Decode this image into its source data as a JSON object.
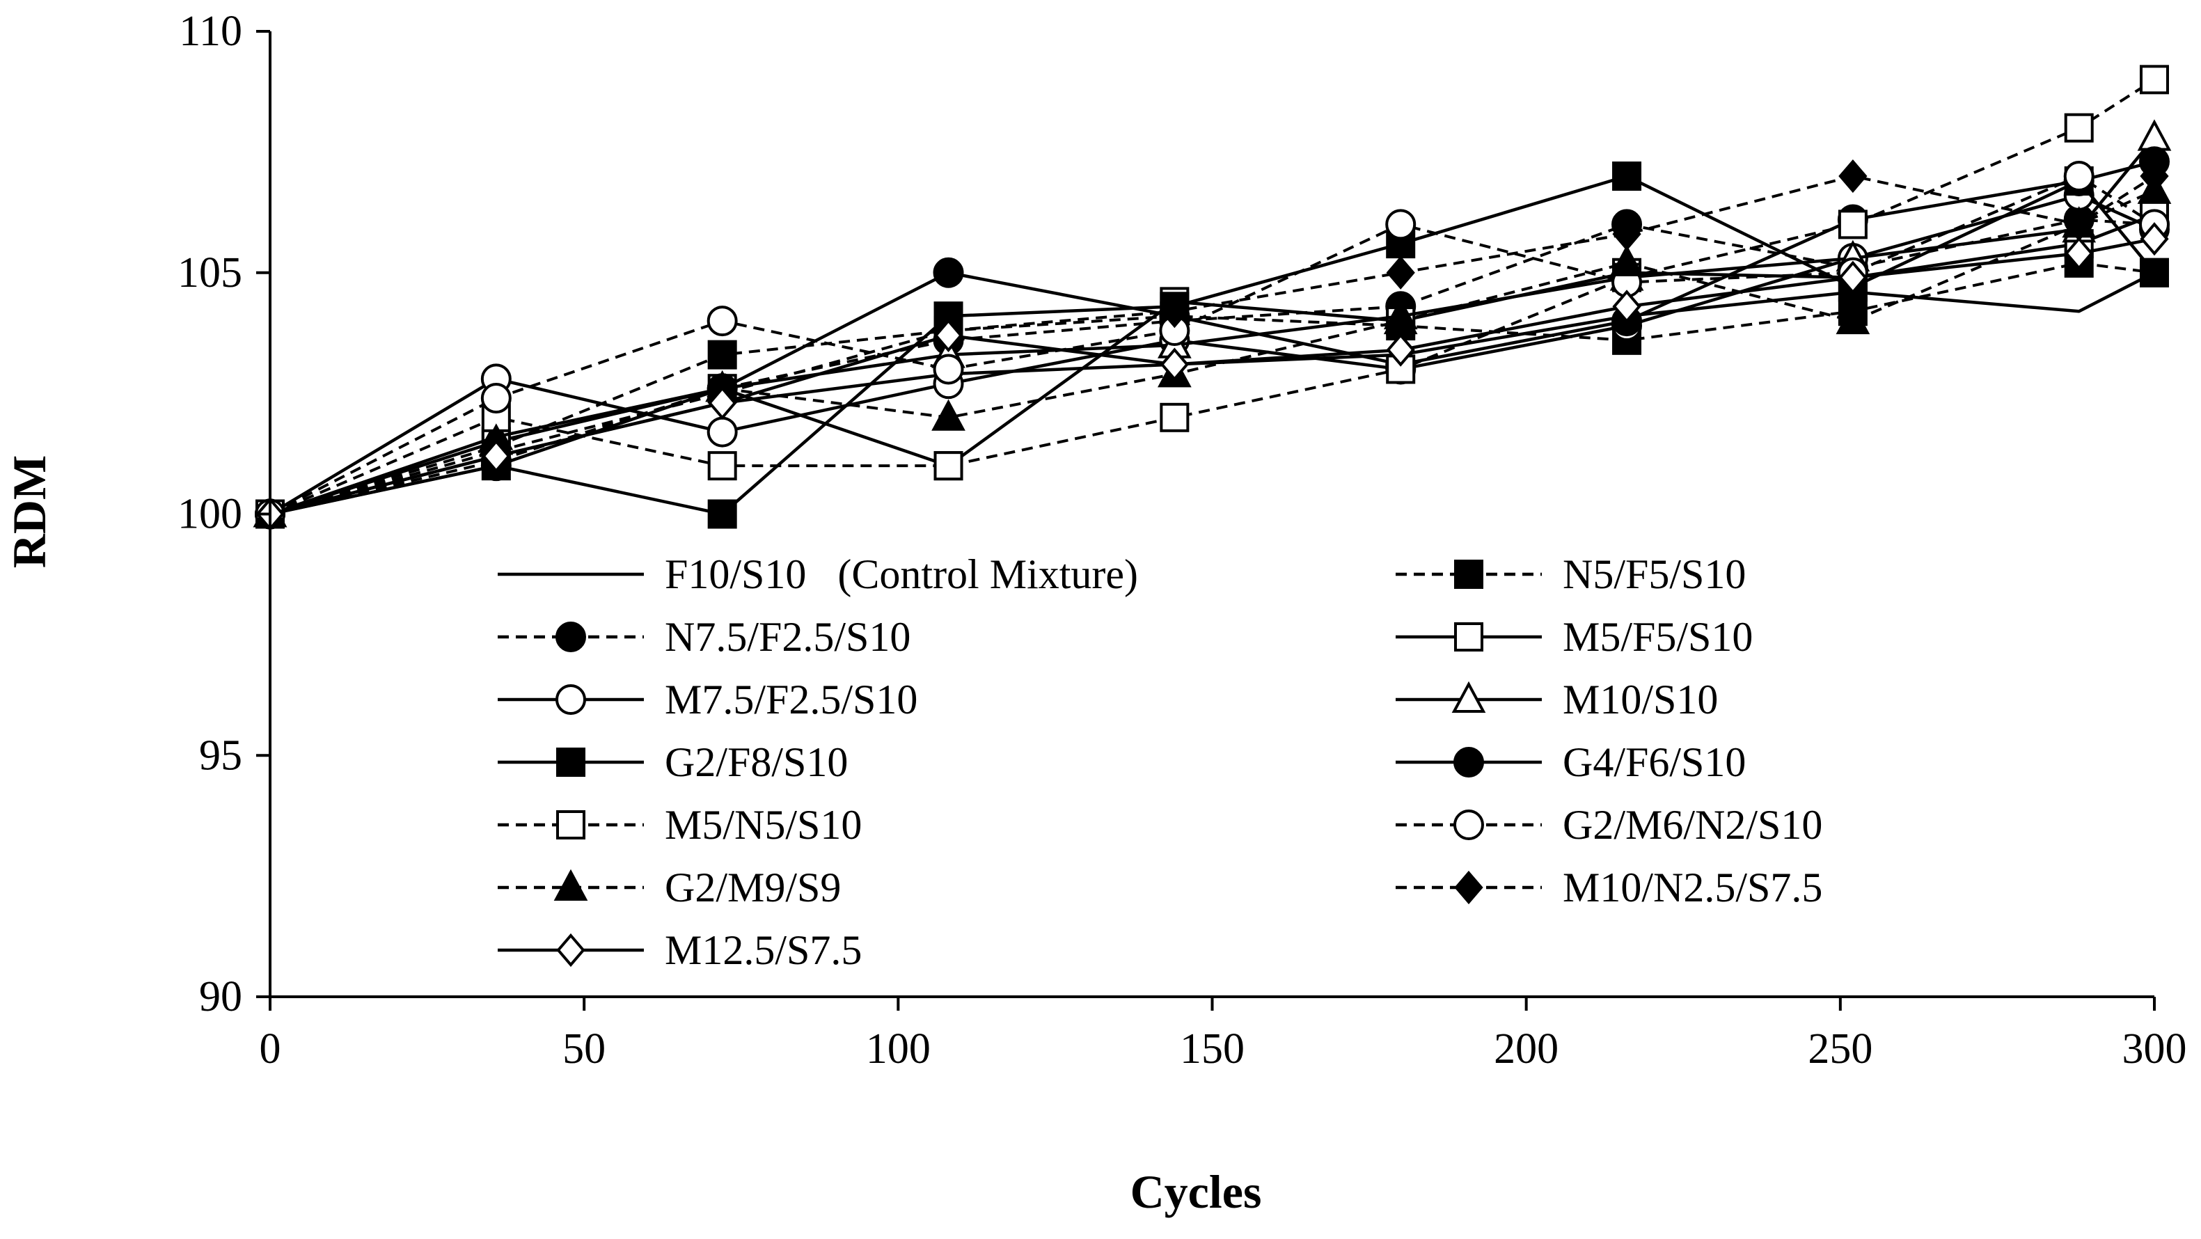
{
  "chart_data": {
    "type": "line",
    "title": "",
    "xlabel": "Cycles",
    "ylabel": "RDM",
    "xlim": [
      0,
      300
    ],
    "ylim": [
      90,
      110
    ],
    "xticks": [
      0,
      50,
      100,
      150,
      200,
      250,
      300
    ],
    "yticks": [
      90,
      95,
      100,
      105,
      110
    ],
    "grid": false,
    "legend_position": "center",
    "x": [
      0,
      36,
      72,
      108,
      144,
      180,
      216,
      252,
      288,
      300
    ],
    "series": [
      {
        "name": "F10/S10   (Control Mixture)",
        "dash": "solid",
        "marker": "none",
        "values": [
          100,
          101.2,
          102.3,
          102.9,
          103.1,
          103.3,
          104.1,
          104.6,
          104.2,
          105.0
        ]
      },
      {
        "name": "N5/F5/S10",
        "dash": "dashed",
        "marker": "square-filled",
        "values": [
          100,
          101.4,
          103.3,
          103.8,
          104.1,
          103.9,
          103.6,
          104.2,
          105.2,
          105.0
        ]
      },
      {
        "name": "N7.5/F2.5/S10",
        "dash": "dashed",
        "marker": "circle-filled",
        "values": [
          100,
          101.1,
          102.6,
          103.6,
          104.0,
          104.3,
          106.0,
          105.1,
          106.1,
          106.0
        ]
      },
      {
        "name": "M5/F5/S10",
        "dash": "solid",
        "marker": "square-open",
        "values": [
          100,
          101.5,
          102.6,
          101.0,
          104.4,
          104.0,
          105.0,
          104.9,
          105.6,
          106.2
        ]
      },
      {
        "name": "M7.5/F2.5/S10",
        "dash": "solid",
        "marker": "circle-open",
        "values": [
          100,
          102.8,
          101.7,
          102.7,
          103.6,
          103.0,
          103.9,
          105.3,
          106.6,
          105.9
        ]
      },
      {
        "name": "M10/S10",
        "dash": "solid",
        "marker": "triangle-open",
        "values": [
          100,
          101.6,
          102.6,
          103.3,
          103.5,
          104.1,
          104.9,
          105.3,
          105.9,
          107.8
        ]
      },
      {
        "name": "G2/F8/S10",
        "dash": "solid",
        "marker": "square-filled",
        "values": [
          100,
          101.0,
          100.0,
          104.1,
          104.3,
          105.6,
          107.0,
          104.7,
          106.9,
          105.0
        ]
      },
      {
        "name": "G4/F6/S10",
        "dash": "solid",
        "marker": "circle-filled",
        "values": [
          100,
          101.0,
          102.6,
          105.0,
          104.1,
          103.1,
          104.0,
          106.1,
          106.9,
          107.3
        ]
      },
      {
        "name": "M5/N5/S10",
        "dash": "dashed",
        "marker": "square-open",
        "values": [
          100,
          102.0,
          101.0,
          101.0,
          102.0,
          103.0,
          104.9,
          106.0,
          108.0,
          109.0
        ]
      },
      {
        "name": "G2/M6/N2/S10",
        "dash": "dashed",
        "marker": "circle-open",
        "values": [
          100,
          102.4,
          104.0,
          103.0,
          103.8,
          106.0,
          104.8,
          105.0,
          107.0,
          106.0
        ]
      },
      {
        "name": "G2/M9/S9",
        "dash": "dashed",
        "marker": "triangle-filled",
        "values": [
          100,
          101.5,
          102.6,
          102.0,
          102.9,
          104.0,
          105.2,
          104.0,
          106.0,
          106.7
        ]
      },
      {
        "name": "M10/N2.5/S7.5",
        "dash": "dashed",
        "marker": "diamond-filled",
        "values": [
          100,
          101.3,
          102.5,
          103.8,
          104.2,
          105.0,
          105.8,
          107.0,
          106.0,
          107.0
        ]
      },
      {
        "name": "M12.5/S7.5",
        "dash": "solid",
        "marker": "diamond-open",
        "values": [
          100,
          101.2,
          102.3,
          103.7,
          103.1,
          103.4,
          104.3,
          104.9,
          105.4,
          105.7
        ]
      }
    ]
  }
}
